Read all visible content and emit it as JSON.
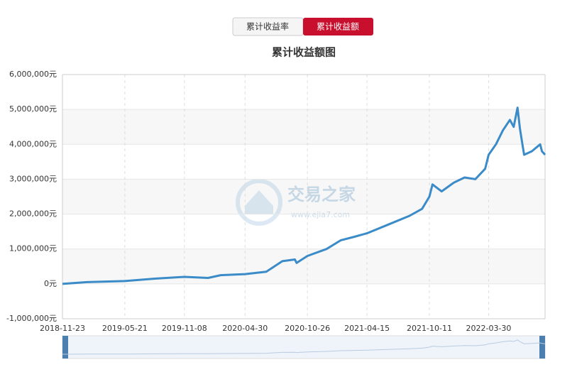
{
  "tabs": [
    "累计收益率",
    "累计收益额"
  ],
  "chart_data": {
    "type": "line",
    "title": "累计收益额图",
    "watermark": {
      "text": "交易之家",
      "url": "www.ejia7.com"
    },
    "x": [
      "2018-11-23",
      "2019-02-01",
      "2019-05-21",
      "2019-08-15",
      "2019-11-08",
      "2020-01-15",
      "2020-02-20",
      "2020-04-30",
      "2020-06-30",
      "2020-08-15",
      "2020-09-20",
      "2020-09-25",
      "2020-10-26",
      "2020-12-20",
      "2021-01-30",
      "2021-03-10",
      "2021-04-15",
      "2021-06-15",
      "2021-08-15",
      "2021-09-20",
      "2021-10-11",
      "2021-10-20",
      "2021-11-15",
      "2021-12-20",
      "2022-01-20",
      "2022-02-20",
      "2022-03-20",
      "2022-03-30",
      "2022-04-20",
      "2022-05-10",
      "2022-05-30",
      "2022-06-10",
      "2022-06-21",
      "2022-06-28",
      "2022-07-05",
      "2022-07-10",
      "2022-08-01",
      "2022-08-25",
      "2022-08-30",
      "2022-09-08"
    ],
    "series": [
      {
        "name": "累计收益额",
        "color": "#3a8bc8",
        "values": [
          0,
          50000,
          80000,
          150000,
          200000,
          170000,
          250000,
          280000,
          350000,
          650000,
          700000,
          600000,
          800000,
          1000000,
          1250000,
          1350000,
          1450000,
          1700000,
          1950000,
          2150000,
          2500000,
          2850000,
          2650000,
          2900000,
          3050000,
          3000000,
          3300000,
          3700000,
          4000000,
          4400000,
          4700000,
          4500000,
          5050000,
          4450000,
          4000000,
          3700000,
          3800000,
          4000000,
          3800000,
          3700000
        ]
      }
    ],
    "xlim": [
      "2018-11-23",
      "2022-09-08"
    ],
    "xticks": [
      "2018-11-23",
      "2019-05-21",
      "2019-11-08",
      "2020-04-30",
      "2020-10-26",
      "2021-04-15",
      "2021-10-11",
      "2022-03-30"
    ],
    "ylim": [
      -1000000,
      6000000
    ],
    "yticks": [
      {
        "value": -1000000,
        "label": "-1,000,000元"
      },
      {
        "value": 0,
        "label": "0元"
      },
      {
        "value": 1000000,
        "label": "1,000,000元"
      },
      {
        "value": 2000000,
        "label": "2,000,000元"
      },
      {
        "value": 3000000,
        "label": "3,000,000元"
      },
      {
        "value": 4000000,
        "label": "4,000,000元"
      },
      {
        "value": 5000000,
        "label": "5,000,000元"
      },
      {
        "value": 6000000,
        "label": "6,000,000元"
      }
    ],
    "grid": true
  }
}
